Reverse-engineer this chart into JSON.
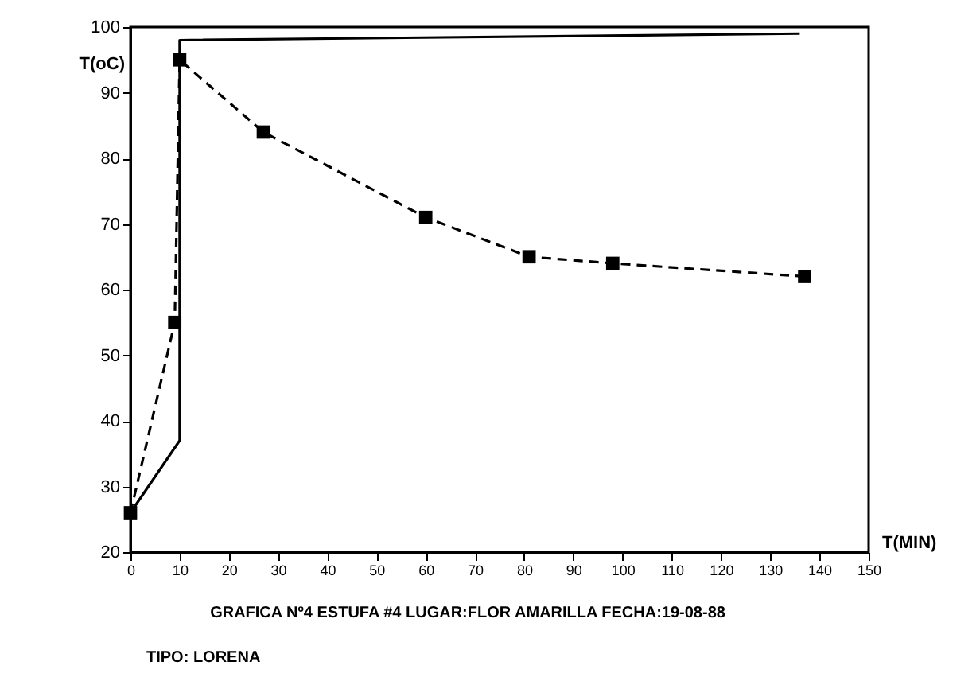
{
  "chart_data": {
    "type": "line",
    "xlabel": "T(MIN)",
    "ylabel": "T(oC)",
    "xlim": [
      0,
      150
    ],
    "xticks": [
      0,
      10,
      20,
      30,
      40,
      50,
      60,
      70,
      80,
      90,
      100,
      110,
      120,
      130,
      140,
      150
    ],
    "ylim": [
      20,
      100
    ],
    "yticks": [
      20,
      30,
      40,
      50,
      60,
      70,
      80,
      90,
      100
    ],
    "grid": false,
    "series": [
      {
        "color": "#000000",
        "line_style": "solid",
        "marker": "none",
        "x": [
          0,
          10,
          10,
          136
        ],
        "values": [
          26,
          37,
          98,
          99
        ]
      },
      {
        "color": "#000000",
        "line_style": "dashed",
        "marker": "square",
        "x": [
          0,
          9,
          10,
          27,
          60,
          81,
          98,
          137
        ],
        "values": [
          26,
          55,
          95,
          84,
          71,
          65,
          64,
          62
        ]
      }
    ],
    "annotations": [
      "GRAFICA Nº4  ESTUFA #4    LUGAR:FLOR AMARILLA    FECHA:19-08-88",
      "TIPO:  LORENA"
    ]
  }
}
